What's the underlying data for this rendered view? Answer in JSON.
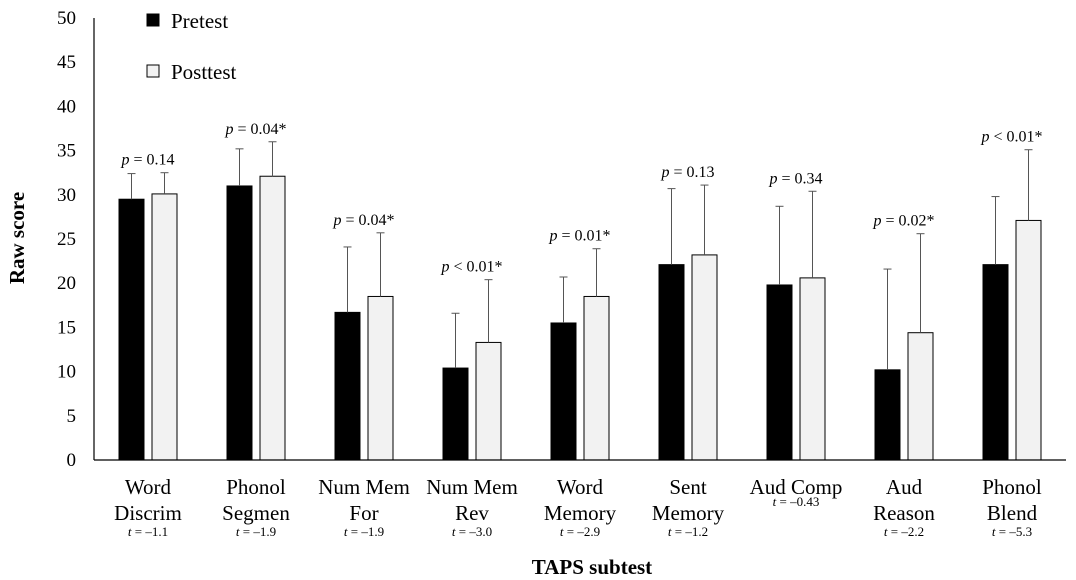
{
  "chart_data": {
    "type": "bar",
    "xlabel": "TAPS subtest",
    "ylabel": "Raw score",
    "ylim": [
      0,
      50
    ],
    "yticks": [
      0,
      5,
      10,
      15,
      20,
      25,
      30,
      35,
      40,
      45,
      50
    ],
    "grid": false,
    "legend_position": "top-left",
    "categories": [
      [
        "Word",
        "Discrim"
      ],
      [
        "Phonol",
        "Segmen"
      ],
      [
        "Num Mem",
        "For"
      ],
      [
        "Num Mem",
        "Rev"
      ],
      [
        "Word",
        "Memory"
      ],
      [
        "Sent",
        "Memory"
      ],
      [
        "Aud Comp"
      ],
      [
        "Aud",
        "Reason"
      ],
      [
        "Phonol",
        "Blend"
      ]
    ],
    "series": [
      {
        "name": "Pretest",
        "color": "#000000",
        "values": [
          29.5,
          31,
          16.7,
          10.4,
          15.5,
          22.1,
          19.8,
          10.2,
          22.1
        ],
        "error": [
          2.9,
          4.2,
          7.4,
          6.2,
          5.2,
          8.6,
          8.9,
          11.4,
          7.7
        ]
      },
      {
        "name": "Posttest",
        "color": "#f2f2f2",
        "values": [
          30.1,
          32.1,
          18.5,
          13.3,
          18.5,
          23.2,
          20.6,
          14.4,
          27.1
        ],
        "error": [
          2.4,
          3.9,
          7.2,
          7.1,
          5.4,
          7.9,
          9.8,
          11.2,
          8.0
        ]
      }
    ],
    "p_values": [
      {
        "italic": "p",
        "rest": " = 0.14"
      },
      {
        "italic": "p",
        "rest": " = 0.04*"
      },
      {
        "italic": "p",
        "rest": " = 0.04*"
      },
      {
        "italic": "p",
        "rest": " < 0.01*"
      },
      {
        "italic": "p",
        "rest": " = 0.01*"
      },
      {
        "italic": "p",
        "rest": " = 0.13"
      },
      {
        "italic": "p",
        "rest": " = 0.34"
      },
      {
        "italic": "p",
        "rest": " = 0.02*"
      },
      {
        "italic": "p",
        "rest": " < 0.01*"
      }
    ],
    "t_values": [
      {
        "italic": "t",
        "rest": " = –1.1"
      },
      {
        "italic": "t",
        "rest": " = –1.9"
      },
      {
        "italic": "t",
        "rest": " = –1.9"
      },
      {
        "italic": "t",
        "rest": " = –3.0"
      },
      {
        "italic": "t",
        "rest": " = –2.9"
      },
      {
        "italic": "t",
        "rest": " = –1.2"
      },
      {
        "italic": "t",
        "rest": " = –0.43"
      },
      {
        "italic": "t",
        "rest": " = –2.2"
      },
      {
        "italic": "t",
        "rest": " = –5.3"
      }
    ]
  }
}
